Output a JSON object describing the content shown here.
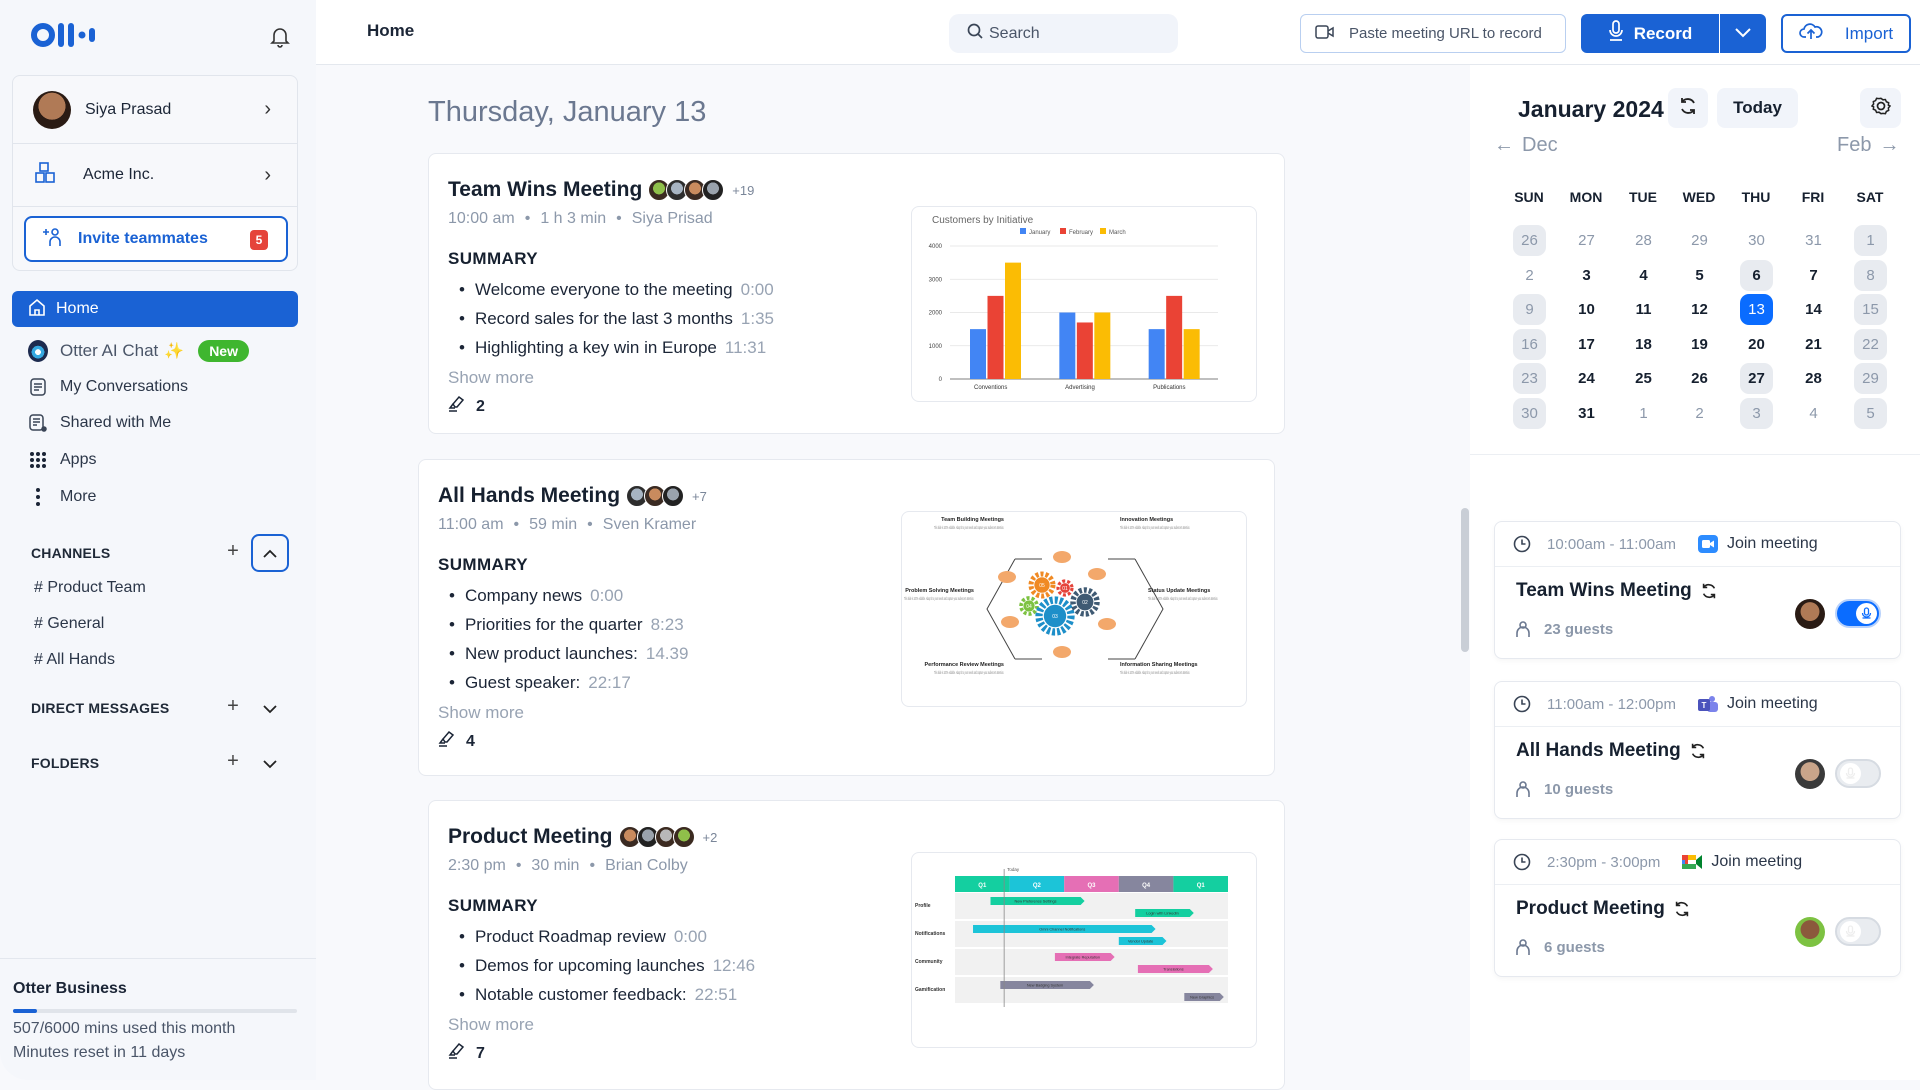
{
  "sidebar": {
    "user_name": "Siya Prasad",
    "org_name": "Acme Inc.",
    "invite_label": "Invite teammates",
    "invite_count": "5",
    "nav": {
      "home": "Home",
      "ai_chat": "Otter AI Chat",
      "ai_chat_badge": "New",
      "conversations": "My Conversations",
      "shared": "Shared with Me",
      "apps": "Apps",
      "more": "More"
    },
    "channels_label": "CHANNELS",
    "channels": [
      "# Product Team",
      "# General",
      "# All Hands"
    ],
    "dm_label": "DIRECT MESSAGES",
    "folders_label": "FOLDERS",
    "plan": {
      "name": "Otter Business",
      "usage_text": "507/6000 mins used this month",
      "reset_text": "Minutes reset in 11 days",
      "used_fraction": 0.0845
    }
  },
  "topbar": {
    "page_title": "Home",
    "search_placeholder": "Search",
    "paste_url_label": "Paste meeting URL to record",
    "record_label": "Record",
    "import_label": "Import"
  },
  "colors": {
    "accent": "#1a62d4",
    "selected_day": "#0a6cff",
    "badge": "#e5443b",
    "new_badge": "#3fb62f"
  },
  "main": {
    "date_heading": "Thursday, January 13",
    "summary_label": "SUMMARY",
    "show_more_label": "Show more",
    "meetings": [
      {
        "title": "Team Wins Meeting",
        "extra_attendees": "+19",
        "time": "10:00 am",
        "duration": "1 h 3 min",
        "owner": "Siya Prisad",
        "summary": [
          {
            "text": "Welcome everyone to the meeting",
            "ts": "0:00"
          },
          {
            "text": "Record sales for the last 3 months",
            "ts": "1:35"
          },
          {
            "text": "Highlighting a key win in Europe",
            "ts": "11:31"
          }
        ],
        "clips": "2"
      },
      {
        "title": "All Hands Meeting",
        "extra_attendees": "+7",
        "time": "11:00 am",
        "duration": "59 min",
        "owner": "Sven Kramer",
        "summary": [
          {
            "text": "Company news",
            "ts": "0:00"
          },
          {
            "text": "Priorities for the quarter",
            "ts": "8:23"
          },
          {
            "text": "New product launches:",
            "ts": "14.39"
          },
          {
            "text": "Guest speaker:",
            "ts": "22:17"
          }
        ],
        "clips": "4"
      },
      {
        "title": "Product Meeting",
        "extra_attendees": "+2",
        "time": "2:30 pm",
        "duration": "30 min",
        "owner": "Brian Colby",
        "summary": [
          {
            "text": "Product Roadmap review",
            "ts": "0:00"
          },
          {
            "text": "Demos for upcoming launches",
            "ts": "12:46"
          },
          {
            "text": "Notable customer feedback:",
            "ts": "22:51"
          }
        ],
        "clips": "7"
      }
    ],
    "thumb_bar": {
      "title": "Customers by Initiative",
      "legend": [
        {
          "name": "January",
          "color": "#4285f4"
        },
        {
          "name": "February",
          "color": "#ea4335"
        },
        {
          "name": "March",
          "color": "#fbbc04"
        }
      ],
      "categories": [
        "Conventions",
        "Advertising",
        "Publications"
      ],
      "values": [
        [
          1500,
          2500,
          3500
        ],
        [
          2000,
          1700,
          2000
        ],
        [
          1500,
          2500,
          1500
        ]
      ],
      "yticks": [
        "0",
        "1000",
        "2000",
        "3000",
        "4000"
      ],
      "ymax": 4000
    },
    "thumb_gears": {
      "blurb": "This slide is 100% editable. Adapt it to your needs and capture your audience's attention.",
      "labels": [
        "Team Building Meetings",
        "Innovation Meetings",
        "Problem Solving Meetings",
        "Status Update Meetings",
        "Performance Review Meetings",
        "Information Sharing Meetings"
      ],
      "gears": [
        {
          "n": "05",
          "color": "#f08a24"
        },
        {
          "n": "01",
          "color": "#e5443b"
        },
        {
          "n": "04",
          "color": "#7dc242"
        },
        {
          "n": "03",
          "color": "#1d8fc9"
        },
        {
          "n": "02",
          "color": "#3f5a73"
        }
      ]
    },
    "thumb_roadmap": {
      "today_label": "Today",
      "today_at": 0.9,
      "quarters": [
        {
          "label": "Q1",
          "color": "#14cfa0"
        },
        {
          "label": "Q2",
          "color": "#1cc4d8"
        },
        {
          "label": "Q3",
          "color": "#e56fb5"
        },
        {
          "label": "Q4",
          "color": "#86869e"
        },
        {
          "label": "Q1",
          "color": "#14cfa0"
        }
      ],
      "rows": [
        {
          "label": "Profile",
          "bars": [
            {
              "text": "New Preference Settings",
              "start": 0.65,
              "end": 2.3,
              "color": "#14cfa0"
            },
            {
              "text": "Login with LinkedIn",
              "start": 3.3,
              "end": 4.3,
              "color": "#14cfa0"
            }
          ]
        },
        {
          "label": "Notifications",
          "bars": [
            {
              "text": "Omni Channel Notifications",
              "start": 0.33,
              "end": 3.6,
              "color": "#1cc4d8"
            },
            {
              "text": "Vendor Update",
              "start": 3.0,
              "end": 3.8,
              "color": "#1cc4d8"
            }
          ]
        },
        {
          "label": "Community",
          "bars": [
            {
              "text": "Integrate Reputation",
              "start": 1.83,
              "end": 2.85,
              "color": "#e56fb5"
            },
            {
              "text": "Translations",
              "start": 3.35,
              "end": 4.65,
              "color": "#e56fb5"
            }
          ]
        },
        {
          "label": "Gamification",
          "bars": [
            {
              "text": "New Badging System",
              "start": 0.83,
              "end": 2.47,
              "color": "#86869e"
            },
            {
              "text": "New Graphics",
              "start": 4.2,
              "end": 4.85,
              "color": "#86869e"
            }
          ]
        }
      ]
    }
  },
  "calendar": {
    "month_title": "January 2024",
    "today_label": "Today",
    "prev_label": "Dec",
    "next_label": "Feb",
    "weekdays": [
      "SUN",
      "MON",
      "TUE",
      "WED",
      "THU",
      "FRI",
      "SAT"
    ],
    "weeks": [
      [
        {
          "day": "26",
          "muted": true,
          "pill": true
        },
        {
          "day": "27",
          "muted": true
        },
        {
          "day": "28",
          "muted": true
        },
        {
          "day": "29",
          "muted": true
        },
        {
          "day": "30",
          "muted": true
        },
        {
          "day": "31",
          "muted": true
        },
        {
          "day": "1",
          "muted": true,
          "pill": true
        }
      ],
      [
        {
          "day": "2",
          "muted": true
        },
        {
          "day": "3"
        },
        {
          "day": "4"
        },
        {
          "day": "5"
        },
        {
          "day": "6",
          "pill": true
        },
        {
          "day": "7"
        },
        {
          "day": "8",
          "muted": true,
          "pill": true
        }
      ],
      [
        {
          "day": "9",
          "muted": true,
          "pill": true
        },
        {
          "day": "10"
        },
        {
          "day": "11"
        },
        {
          "day": "12"
        },
        {
          "day": "13",
          "selected": true
        },
        {
          "day": "14"
        },
        {
          "day": "15",
          "muted": true,
          "pill": true
        }
      ],
      [
        {
          "day": "16",
          "muted": true,
          "pill": true
        },
        {
          "day": "17"
        },
        {
          "day": "18"
        },
        {
          "day": "19"
        },
        {
          "day": "20"
        },
        {
          "day": "21"
        },
        {
          "day": "22",
          "muted": true,
          "pill": true
        }
      ],
      [
        {
          "day": "23",
          "muted": true,
          "pill": true
        },
        {
          "day": "24"
        },
        {
          "day": "25"
        },
        {
          "day": "26"
        },
        {
          "day": "27",
          "pill": true
        },
        {
          "day": "28"
        },
        {
          "day": "29",
          "muted": true,
          "pill": true
        }
      ],
      [
        {
          "day": "30",
          "muted": true,
          "pill": true
        },
        {
          "day": "31"
        },
        {
          "day": "1",
          "muted": true
        },
        {
          "day": "2",
          "muted": true
        },
        {
          "day": "3",
          "muted": true,
          "pill": true
        },
        {
          "day": "4",
          "muted": true
        },
        {
          "day": "5",
          "muted": true,
          "pill": true
        }
      ]
    ]
  },
  "upcoming": {
    "join_label": "Join meeting",
    "events": [
      {
        "time": "10:00am - 11:00am",
        "platform": "zoom-icon",
        "title": "Team Wins Meeting",
        "guests": "23 guests",
        "record_enabled": true
      },
      {
        "time": "11:00am - 12:00pm",
        "platform": "teams-icon",
        "title": "All Hands Meeting",
        "guests": "10 guests",
        "record_enabled": false
      },
      {
        "time": "2:30pm - 3:00pm",
        "platform": "google-meet-icon",
        "title": "Product Meeting",
        "guests": "6 guests",
        "record_enabled": false
      }
    ]
  }
}
